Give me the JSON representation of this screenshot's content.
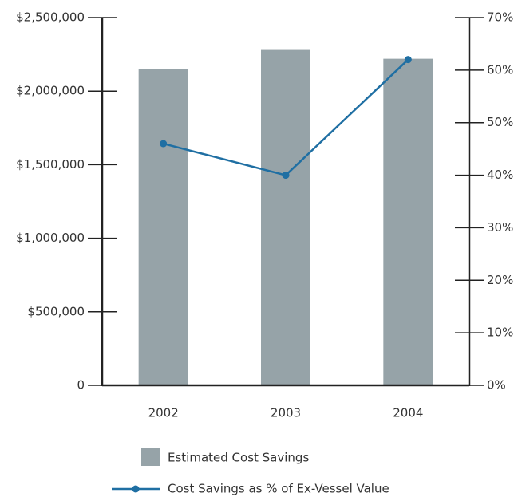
{
  "chart_data": {
    "type": "bar-line",
    "categories": [
      "2002",
      "2003",
      "2004"
    ],
    "series": [
      {
        "name": "Estimated Cost Savings",
        "color": "#96a3a8",
        "values": [
          2150000,
          2280000,
          2220000
        ],
        "axis": "y"
      },
      {
        "name": "Cost Savings as % of Ex-Vessel Value",
        "color": "#1f6fa3",
        "values": [
          46,
          40,
          62
        ],
        "axis": "y2"
      }
    ],
    "ylim": [
      0,
      2500000
    ],
    "yticks": [
      0,
      {
        "value": 500000,
        "label": "$500,000"
      },
      {
        "value": 1000000,
        "label": "$1,000,000"
      },
      {
        "value": 1500000,
        "label": "$1,500,000"
      },
      {
        "value": 2000000,
        "label": "$2,000,000"
      },
      {
        "value": 2500000,
        "label": "$2,500,000"
      }
    ],
    "y2lim": [
      0,
      70
    ],
    "y2ticks": [
      {
        "value": 0,
        "label": "0%"
      },
      {
        "value": 10,
        "label": "10%"
      },
      {
        "value": 20,
        "label": "20%"
      },
      {
        "value": 30,
        "label": "30%"
      },
      {
        "value": 40,
        "label": "40%"
      },
      {
        "value": 50,
        "label": "50%"
      },
      {
        "value": 60,
        "label": "60%"
      },
      {
        "value": 70,
        "label": "70%"
      }
    ]
  }
}
